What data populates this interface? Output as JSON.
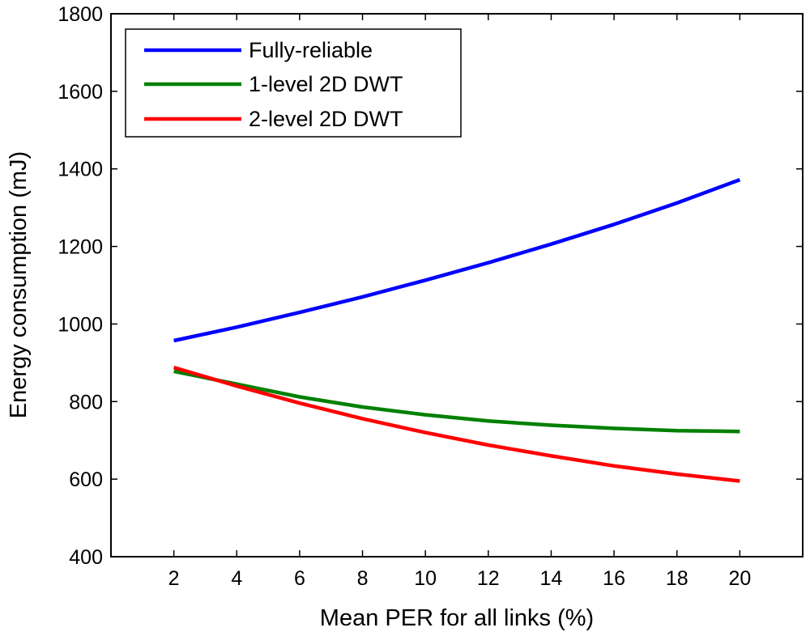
{
  "chart_data": {
    "type": "line",
    "title": "",
    "xlabel": "Mean PER for all links (%)",
    "ylabel": "Energy consumption (mJ)",
    "xlim": [
      0,
      22
    ],
    "ylim": [
      400,
      1800
    ],
    "xticks": [
      2,
      4,
      6,
      8,
      10,
      12,
      14,
      16,
      18,
      20
    ],
    "yticks": [
      400,
      600,
      800,
      1000,
      1200,
      1400,
      1600,
      1800
    ],
    "grid": false,
    "legend_position": "top-left",
    "x": [
      2,
      4,
      6,
      8,
      10,
      12,
      14,
      16,
      18,
      20
    ],
    "series": [
      {
        "name": "Fully-reliable",
        "color": "#0000ff",
        "values": [
          957,
          992,
          1030,
          1070,
          1113,
          1158,
          1206,
          1257,
          1312,
          1372
        ]
      },
      {
        "name": "1-level 2D DWT",
        "color": "#008000",
        "values": [
          878,
          845,
          812,
          786,
          766,
          750,
          739,
          731,
          725,
          723
        ]
      },
      {
        "name": "2-level 2D DWT",
        "color": "#ff0000",
        "values": [
          888,
          840,
          796,
          756,
          720,
          688,
          660,
          634,
          613,
          595
        ]
      }
    ]
  }
}
